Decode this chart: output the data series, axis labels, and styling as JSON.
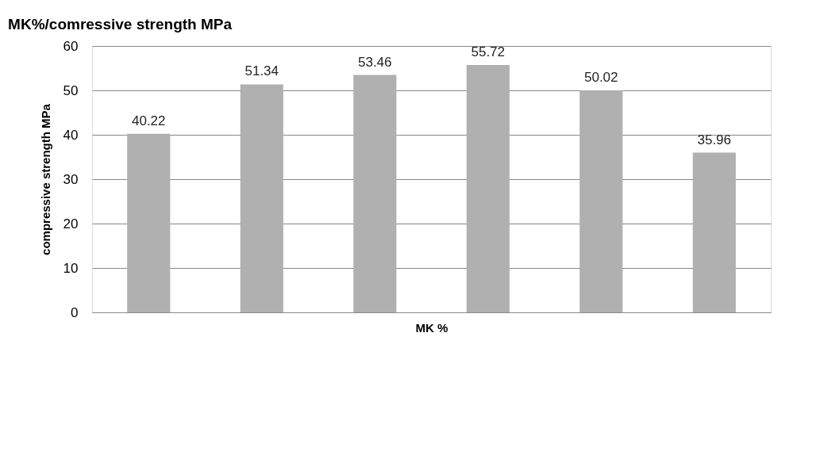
{
  "chart_data": {
    "type": "bar",
    "title": "MK%/comressive strength MPa",
    "xlabel": "MK %",
    "ylabel": "compressive strength MPa",
    "categories": [
      null,
      null,
      null,
      null,
      null,
      null
    ],
    "values": [
      40.22,
      51.34,
      53.46,
      55.72,
      50.02,
      35.96
    ],
    "color": "#b0b0b0",
    "ylim": [
      0,
      60
    ],
    "yticks": [
      0,
      10,
      20,
      30,
      40,
      50,
      60
    ],
    "grid": "y",
    "data_labels": true
  }
}
